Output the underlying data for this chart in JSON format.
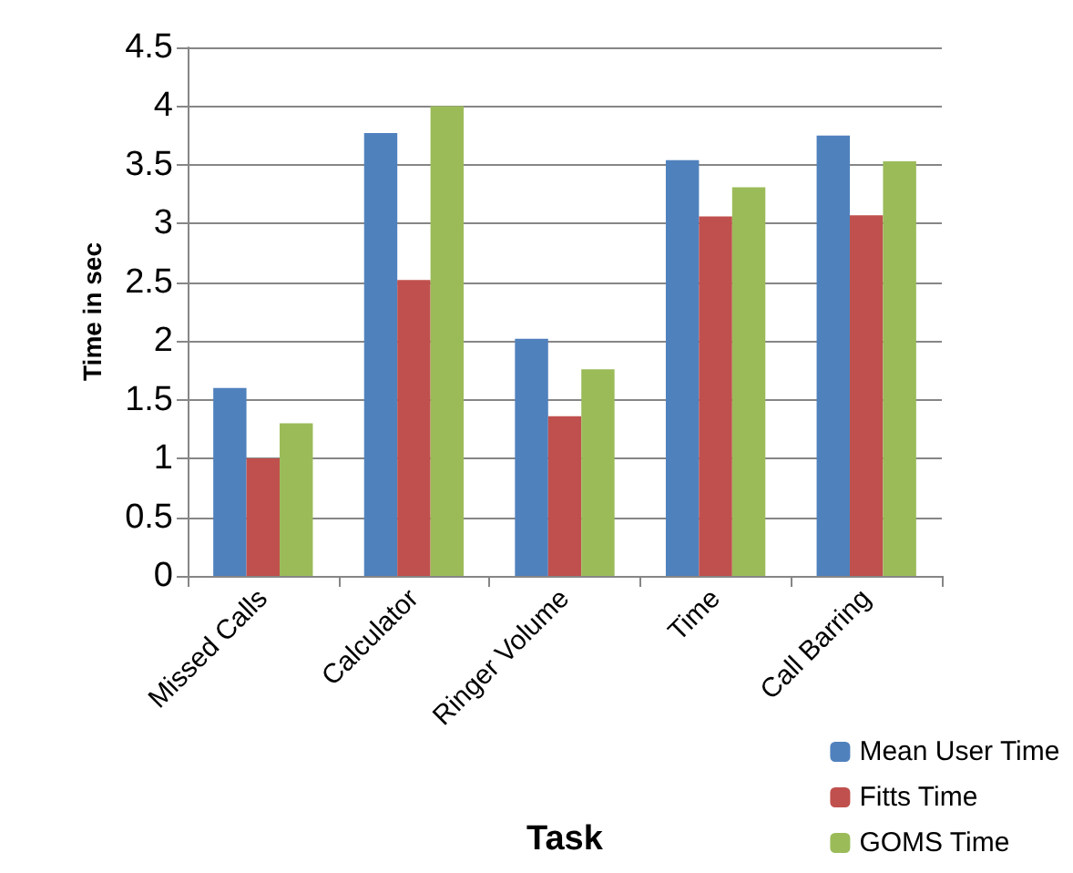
{
  "chart_data": {
    "type": "bar",
    "xlabel": "Task",
    "ylabel": "Time in sec",
    "categories": [
      "Missed Calls",
      "Calculator",
      "Ringer Volume",
      "Time",
      "Call Barring"
    ],
    "series": [
      {
        "name": "Mean User Time",
        "color": "#4f81bd",
        "values": [
          1.6,
          3.77,
          2.02,
          3.54,
          3.75
        ]
      },
      {
        "name": "Fitts Time",
        "color": "#c0504d",
        "values": [
          1.0,
          2.52,
          1.36,
          3.06,
          3.07
        ]
      },
      {
        "name": "GOMS Time",
        "color": "#9bbb59",
        "values": [
          1.3,
          4.0,
          1.76,
          3.31,
          3.53
        ]
      }
    ],
    "ylim": [
      0,
      4.5
    ],
    "yticks": [
      0,
      0.5,
      1,
      1.5,
      2,
      2.5,
      3,
      3.5,
      4,
      4.5
    ],
    "grid": "y",
    "legend": "bottom right"
  }
}
